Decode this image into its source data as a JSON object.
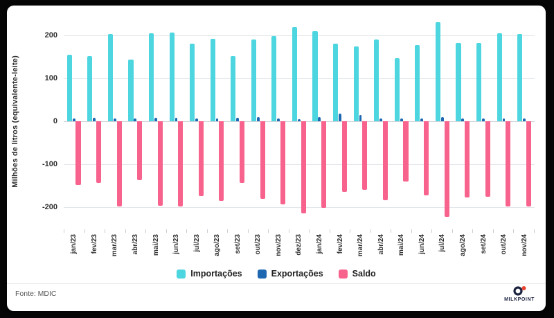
{
  "chart_data": {
    "type": "bar",
    "title": "",
    "xlabel": "",
    "ylabel": "Milhões de litros (equivalente-leite)",
    "ylim": [
      -250,
      250
    ],
    "yticks": [
      200,
      100,
      0,
      -100,
      -200
    ],
    "grid": true,
    "legend_position": "bottom",
    "categories": [
      "jan/23",
      "fev/23",
      "mar/23",
      "abr/23",
      "mai/23",
      "jun/23",
      "jul/23",
      "ago/23",
      "set/23",
      "out/23",
      "nov/23",
      "dez/23",
      "jan/24",
      "fev/24",
      "mar/24",
      "abr/24",
      "mai/24",
      "jun/24",
      "jul/24",
      "ago/24",
      "set/24",
      "out/24",
      "nov/24"
    ],
    "series": [
      {
        "name": "Importações",
        "color": "#4DD6DF",
        "values": [
          155,
          152,
          204,
          144,
          205,
          207,
          181,
          192,
          151,
          190,
          199,
          220,
          210,
          181,
          174,
          191,
          147,
          178,
          231,
          183,
          182,
          205,
          204
        ]
      },
      {
        "name": "Exportações",
        "color": "#1E68B2",
        "values": [
          7,
          8,
          6,
          7,
          8,
          8,
          7,
          6,
          8,
          9,
          6,
          5,
          9,
          17,
          14,
          7,
          6,
          6,
          9,
          6,
          6,
          7,
          6
        ]
      },
      {
        "name": "Saldo",
        "color": "#F8638E",
        "values": [
          -148,
          -144,
          -198,
          -137,
          -197,
          -199,
          -174,
          -186,
          -143,
          -181,
          -193,
          -215,
          -201,
          -164,
          -160,
          -184,
          -141,
          -172,
          -222,
          -177,
          -176,
          -198,
          -198
        ]
      }
    ]
  },
  "footer": {
    "source": "Fonte: MDIC",
    "logo_text": "MILKPOINT"
  },
  "colors": {
    "background": "#060606",
    "card": "#ffffff",
    "importacoes": "#4DD6DF",
    "exportacoes": "#1E68B2",
    "saldo": "#F8638E"
  }
}
